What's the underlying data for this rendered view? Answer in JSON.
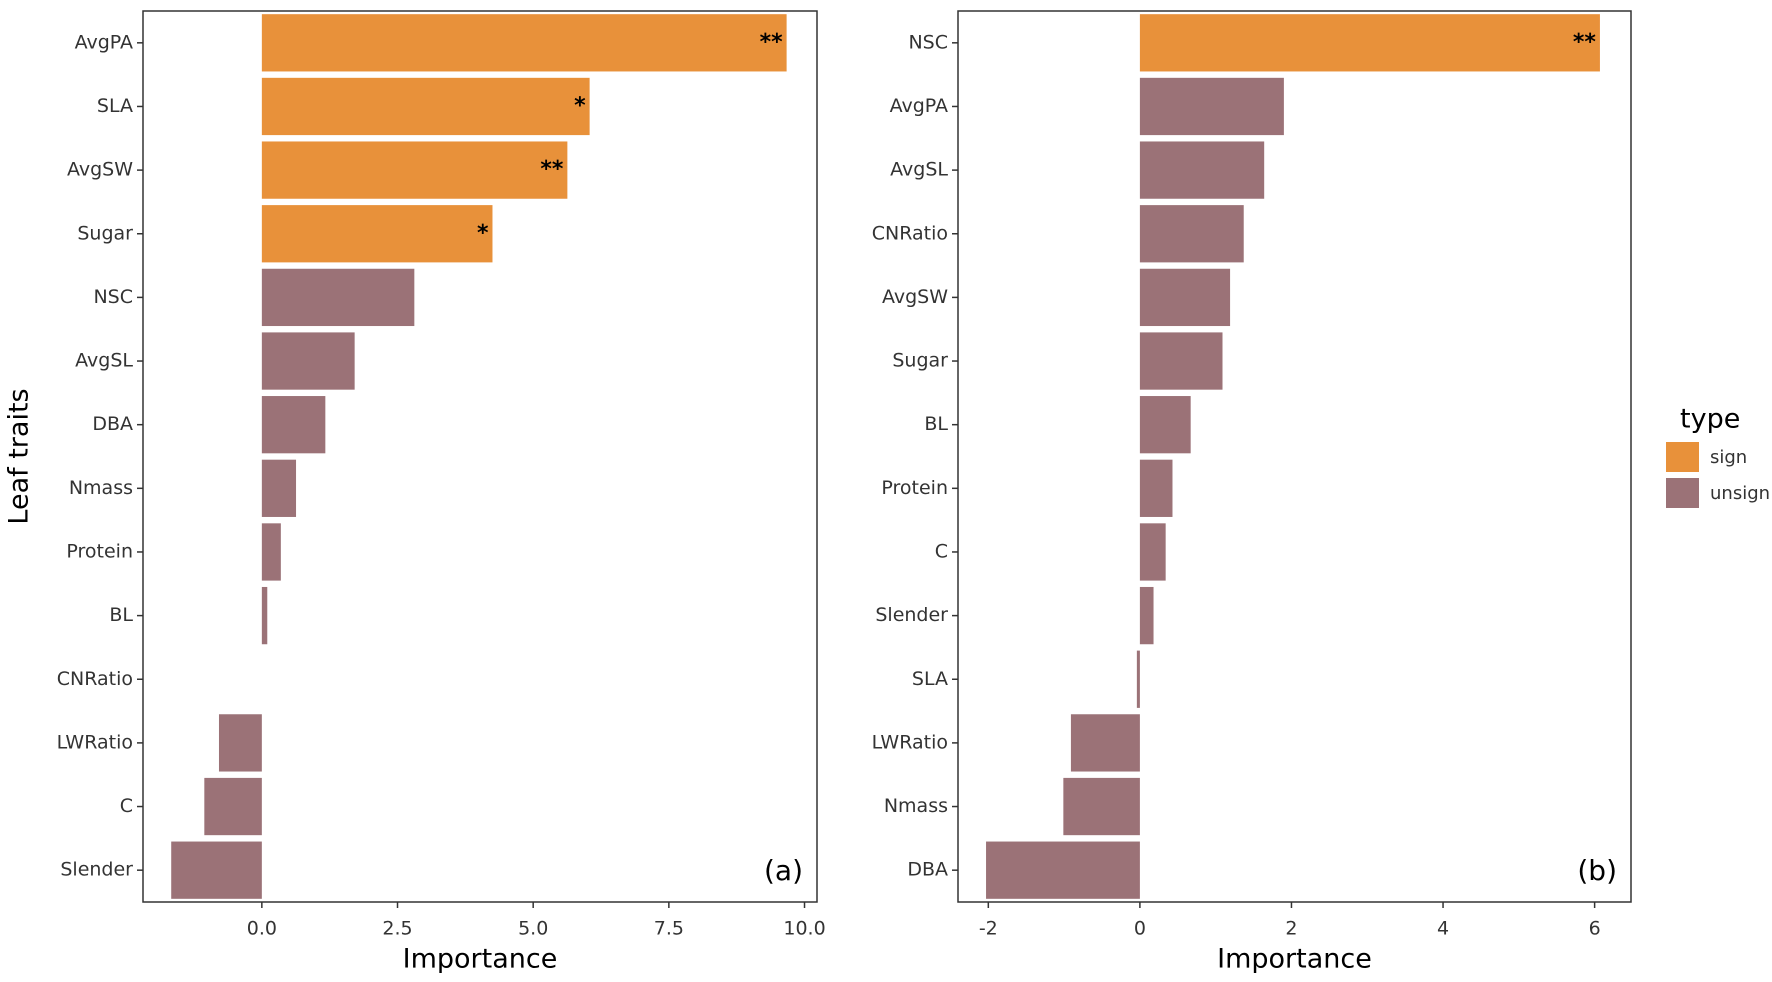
{
  "chart_data": [
    {
      "type": "bar",
      "horizontal": true,
      "tag": "(a)",
      "y_label": "Leaf traits",
      "x_label": "Importance",
      "categories": [
        "AvgPA",
        "SLA",
        "AvgSW",
        "Sugar",
        "NSC",
        "AvgSL",
        "DBA",
        "Nmass",
        "Protein",
        "BL",
        "CNRatio",
        "LWRatio",
        "C",
        "Slender"
      ],
      "values": [
        9.67,
        6.04,
        5.63,
        4.25,
        2.81,
        1.71,
        1.17,
        0.63,
        0.35,
        0.1,
        0,
        -0.79,
        -1.06,
        -1.67
      ],
      "significant": [
        true,
        true,
        true,
        true,
        false,
        false,
        false,
        false,
        false,
        false,
        false,
        false,
        false,
        false
      ],
      "annotations": [
        "**",
        "*",
        "**",
        "*",
        null,
        null,
        null,
        null,
        null,
        null,
        null,
        null,
        null,
        null
      ],
      "xlim": [
        -2.19,
        10.23
      ],
      "xticks": [
        {
          "value": 0,
          "label": "0.0"
        },
        2.5,
        {
          "value": 5,
          "label": "5.0"
        },
        7.5,
        {
          "value": 10,
          "label": "10.0"
        }
      ]
    },
    {
      "type": "bar",
      "horizontal": true,
      "tag": "(b)",
      "x_label": "Importance",
      "categories": [
        "NSC",
        "AvgPA",
        "AvgSL",
        "CNRatio",
        "AvgSW",
        "Sugar",
        "BL",
        "Protein",
        "C",
        "Slender",
        "SLA",
        "LWRatio",
        "Nmass",
        "DBA"
      ],
      "values": [
        6.07,
        1.9,
        1.64,
        1.37,
        1.19,
        1.09,
        0.67,
        0.43,
        0.34,
        0.18,
        -0.04,
        -0.91,
        -1.01,
        -2.03
      ],
      "significant": [
        true,
        false,
        false,
        false,
        false,
        false,
        false,
        false,
        false,
        false,
        false,
        false,
        false,
        false
      ],
      "annotations": [
        "**",
        null,
        null,
        null,
        null,
        null,
        null,
        null,
        null,
        null,
        null,
        null,
        null,
        null
      ],
      "xlim": [
        -2.4,
        6.48
      ],
      "xticks": [
        -2,
        0,
        2,
        4,
        6
      ]
    }
  ],
  "legend": {
    "title": "type",
    "entries": [
      {
        "name": "sign",
        "color": "#e8913a"
      },
      {
        "name": "unsign",
        "color": "#9b7277"
      }
    ]
  }
}
